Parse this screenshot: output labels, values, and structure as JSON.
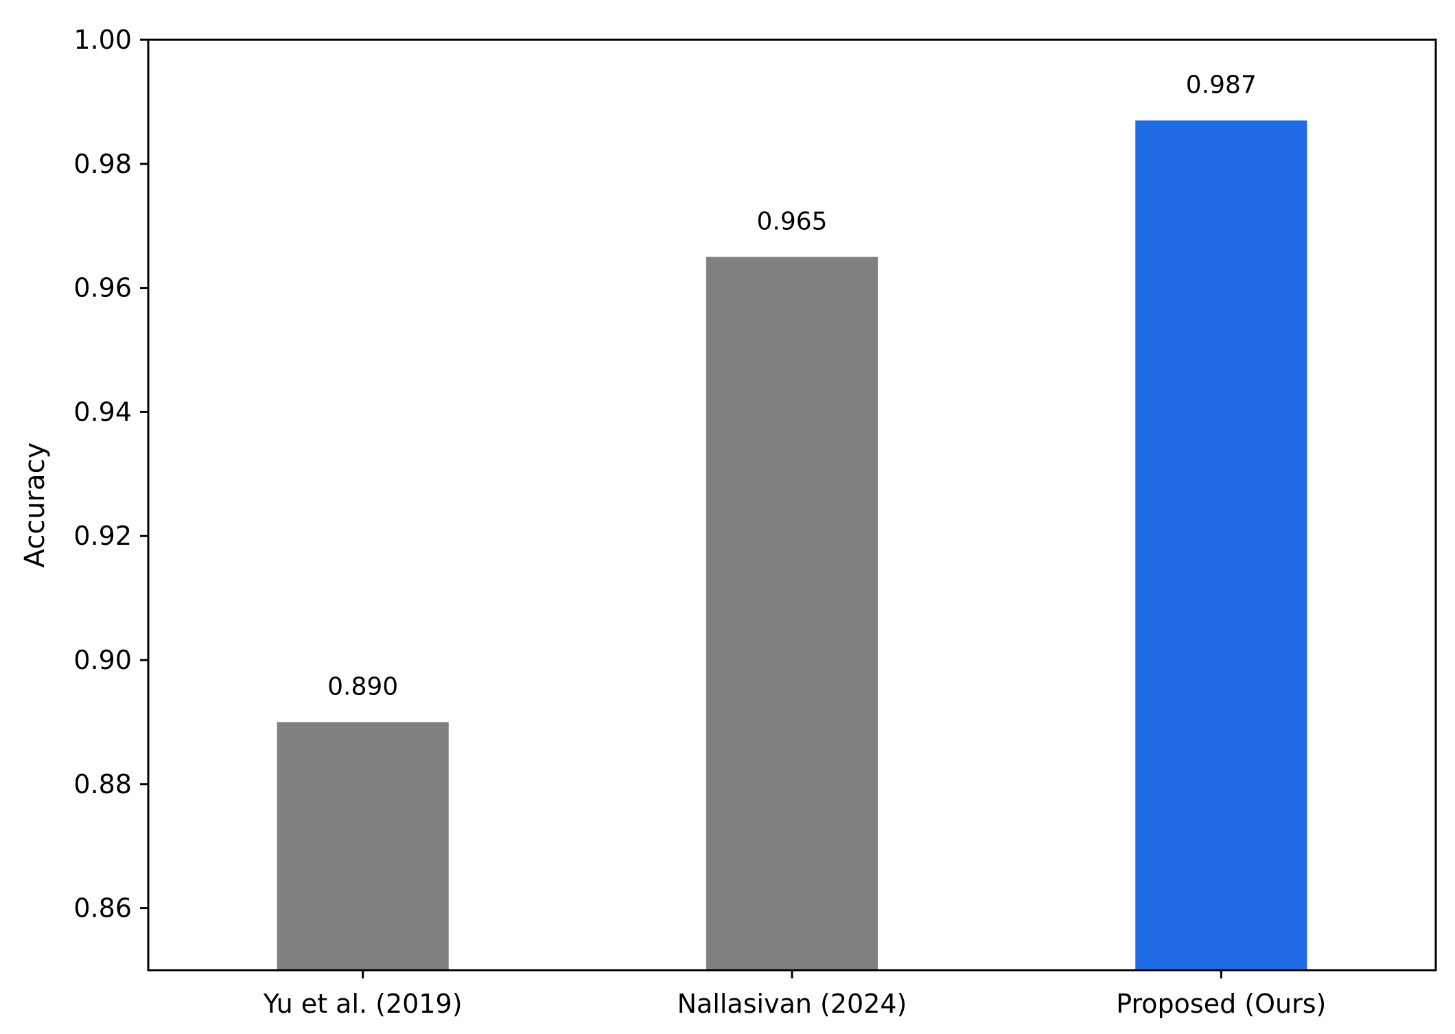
{
  "chart_data": {
    "type": "bar",
    "title": "",
    "xlabel": "",
    "ylabel": "Accuracy",
    "ylim": [
      0.85,
      1.0
    ],
    "yticks": [
      0.86,
      0.88,
      0.9,
      0.92,
      0.94,
      0.96,
      0.98,
      1.0
    ],
    "ytick_labels": [
      "0.86",
      "0.88",
      "0.90",
      "0.92",
      "0.94",
      "0.96",
      "0.98",
      "1.00"
    ],
    "categories": [
      "Yu et al. (2019)",
      "Nallasivan (2024)",
      "Proposed (Ours)"
    ],
    "values": [
      0.89,
      0.965,
      0.987
    ],
    "value_labels": [
      "0.890",
      "0.965",
      "0.987"
    ],
    "bar_colors": [
      "#808080",
      "#808080",
      "#1f6be6"
    ],
    "grid": false,
    "legend": "none"
  }
}
